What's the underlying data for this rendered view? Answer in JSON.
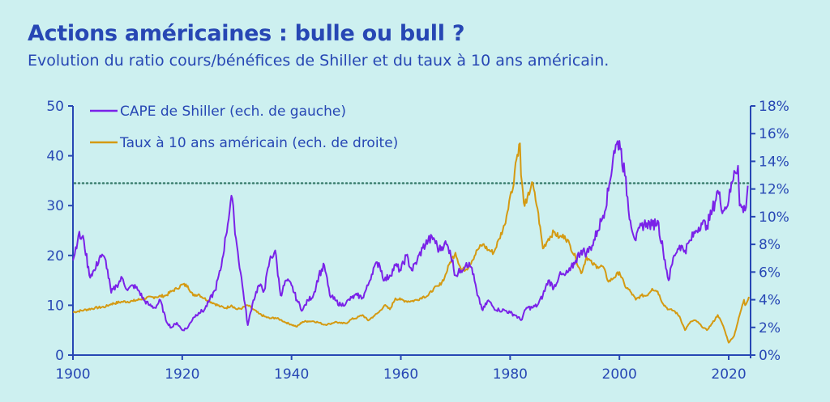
{
  "header": {
    "title": "Actions américaines : bulle ou bull ?",
    "subtitle": "Evolution du ratio cours/bénéfices de Shiller et du taux à 10 ans américain."
  },
  "colors": {
    "background": "#cdf0f0",
    "text": "#2747b4",
    "cape": "#7a22e8",
    "rate": "#d49a12",
    "reference": "#3a7d6e"
  },
  "chart_data": {
    "type": "line",
    "title": "Actions américaines : bulle ou bull ?",
    "subtitle": "Evolution du ratio cours/bénéfices de Shiller et du taux à 10 ans américain.",
    "xlim": [
      1900,
      2024
    ],
    "x_ticks": [
      1900,
      1920,
      1940,
      1960,
      1980,
      2000,
      2020
    ],
    "x_tick_labels": [
      "1900",
      "1920",
      "1940",
      "1960",
      "1980",
      "2000",
      "2020"
    ],
    "y_left": {
      "lim": [
        0,
        50
      ],
      "ticks": [
        0,
        10,
        20,
        30,
        40,
        50
      ],
      "tick_labels": [
        "0",
        "10",
        "20",
        "30",
        "40",
        "50"
      ]
    },
    "y_right": {
      "lim": [
        0,
        18
      ],
      "ticks": [
        0,
        2,
        4,
        6,
        8,
        10,
        12,
        14,
        16,
        18
      ],
      "tick_labels": [
        "0%",
        "2%",
        "4%",
        "6%",
        "8%",
        "10%",
        "12%",
        "14%",
        "16%",
        "18%"
      ]
    },
    "reference_line": {
      "value": 34.5,
      "axis": "left",
      "style": "dotted"
    },
    "legend_placement": "top-left",
    "grid": false,
    "series": [
      {
        "name": "CAPE de Shiller (ech. de gauche)",
        "axis": "left",
        "points": [
          [
            1900,
            19
          ],
          [
            1901,
            24
          ],
          [
            1902,
            23
          ],
          [
            1903,
            16
          ],
          [
            1904,
            17
          ],
          [
            1905,
            20
          ],
          [
            1906,
            19
          ],
          [
            1907,
            12.5
          ],
          [
            1908,
            14
          ],
          [
            1909,
            15.5
          ],
          [
            1910,
            13
          ],
          [
            1911,
            14
          ],
          [
            1912,
            13
          ],
          [
            1913,
            11
          ],
          [
            1914,
            10
          ],
          [
            1915,
            9.5
          ],
          [
            1916,
            11
          ],
          [
            1917,
            7
          ],
          [
            1918,
            5.5
          ],
          [
            1919,
            6.5
          ],
          [
            1920,
            5
          ],
          [
            1921,
            5.5
          ],
          [
            1922,
            7.5
          ],
          [
            1923,
            8.5
          ],
          [
            1924,
            9
          ],
          [
            1925,
            11
          ],
          [
            1926,
            13
          ],
          [
            1927,
            17
          ],
          [
            1928,
            24
          ],
          [
            1929,
            32
          ],
          [
            1929.5,
            27
          ],
          [
            1930,
            22
          ],
          [
            1931,
            14
          ],
          [
            1932,
            6
          ],
          [
            1933,
            11
          ],
          [
            1934,
            14
          ],
          [
            1935,
            13
          ],
          [
            1936,
            19
          ],
          [
            1937,
            21
          ],
          [
            1938,
            12
          ],
          [
            1939,
            15
          ],
          [
            1940,
            14
          ],
          [
            1941,
            11
          ],
          [
            1942,
            9
          ],
          [
            1943,
            11
          ],
          [
            1944,
            12
          ],
          [
            1945,
            16
          ],
          [
            1946,
            18
          ],
          [
            1947,
            12
          ],
          [
            1948,
            11
          ],
          [
            1949,
            10
          ],
          [
            1950,
            10.5
          ],
          [
            1951,
            11.5
          ],
          [
            1952,
            12
          ],
          [
            1953,
            11.5
          ],
          [
            1954,
            14
          ],
          [
            1955,
            17.5
          ],
          [
            1956,
            18.5
          ],
          [
            1957,
            15
          ],
          [
            1958,
            16
          ],
          [
            1959,
            18
          ],
          [
            1960,
            17
          ],
          [
            1961,
            20
          ],
          [
            1962,
            17
          ],
          [
            1963,
            19
          ],
          [
            1964,
            21.5
          ],
          [
            1965,
            23
          ],
          [
            1966,
            23.5
          ],
          [
            1967,
            21
          ],
          [
            1968,
            22.5
          ],
          [
            1969,
            21
          ],
          [
            1970,
            16
          ],
          [
            1971,
            17
          ],
          [
            1972,
            18.5
          ],
          [
            1973,
            17.5
          ],
          [
            1974,
            12
          ],
          [
            1975,
            9
          ],
          [
            1976,
            11
          ],
          [
            1977,
            9.5
          ],
          [
            1978,
            9
          ],
          [
            1979,
            9
          ],
          [
            1980,
            8.5
          ],
          [
            1981,
            8
          ],
          [
            1982,
            7
          ],
          [
            1983,
            9.5
          ],
          [
            1984,
            9.5
          ],
          [
            1985,
            10
          ],
          [
            1986,
            12
          ],
          [
            1987,
            15
          ],
          [
            1988,
            13.5
          ],
          [
            1989,
            16
          ],
          [
            1990,
            16
          ],
          [
            1991,
            17
          ],
          [
            1992,
            19
          ],
          [
            1993,
            21
          ],
          [
            1994,
            20.5
          ],
          [
            1995,
            22
          ],
          [
            1996,
            25
          ],
          [
            1997,
            28
          ],
          [
            1998,
            33
          ],
          [
            1999,
            41
          ],
          [
            2000,
            43
          ],
          [
            2001,
            36
          ],
          [
            2002,
            27
          ],
          [
            2003,
            23
          ],
          [
            2004,
            26
          ],
          [
            2005,
            26.5
          ],
          [
            2006,
            26
          ],
          [
            2007,
            27
          ],
          [
            2008,
            21
          ],
          [
            2009,
            15
          ],
          [
            2010,
            20
          ],
          [
            2011,
            22
          ],
          [
            2012,
            21
          ],
          [
            2013,
            23
          ],
          [
            2014,
            25
          ],
          [
            2015,
            26.5
          ],
          [
            2016,
            26
          ],
          [
            2017,
            29
          ],
          [
            2018,
            33
          ],
          [
            2019,
            29
          ],
          [
            2020,
            31
          ],
          [
            2021,
            37
          ],
          [
            2021.7,
            38
          ],
          [
            2022,
            30
          ],
          [
            2023,
            29
          ],
          [
            2023.5,
            34
          ]
        ]
      },
      {
        "name": "Taux à 10 ans américain (ech. de droite)",
        "axis": "right",
        "points": [
          [
            1900,
            3.1
          ],
          [
            1902,
            3.25
          ],
          [
            1904,
            3.4
          ],
          [
            1906,
            3.5
          ],
          [
            1907,
            3.7
          ],
          [
            1909,
            3.85
          ],
          [
            1911,
            3.9
          ],
          [
            1913,
            4.1
          ],
          [
            1915,
            4.2
          ],
          [
            1917,
            4.3
          ],
          [
            1918,
            4.6
          ],
          [
            1919,
            4.8
          ],
          [
            1920,
            5.1
          ],
          [
            1921,
            5.0
          ],
          [
            1922,
            4.3
          ],
          [
            1923,
            4.4
          ],
          [
            1924,
            4.1
          ],
          [
            1925,
            3.9
          ],
          [
            1926,
            3.7
          ],
          [
            1927,
            3.5
          ],
          [
            1928,
            3.4
          ],
          [
            1929,
            3.6
          ],
          [
            1930,
            3.3
          ],
          [
            1931,
            3.4
          ],
          [
            1932,
            3.6
          ],
          [
            1933,
            3.3
          ],
          [
            1934,
            3.0
          ],
          [
            1935,
            2.8
          ],
          [
            1936,
            2.65
          ],
          [
            1937,
            2.7
          ],
          [
            1938,
            2.55
          ],
          [
            1939,
            2.35
          ],
          [
            1940,
            2.2
          ],
          [
            1941,
            2.05
          ],
          [
            1942,
            2.4
          ],
          [
            1943,
            2.45
          ],
          [
            1944,
            2.45
          ],
          [
            1945,
            2.35
          ],
          [
            1946,
            2.2
          ],
          [
            1947,
            2.25
          ],
          [
            1948,
            2.4
          ],
          [
            1949,
            2.3
          ],
          [
            1950,
            2.3
          ],
          [
            1951,
            2.6
          ],
          [
            1952,
            2.7
          ],
          [
            1953,
            2.9
          ],
          [
            1954,
            2.5
          ],
          [
            1955,
            2.8
          ],
          [
            1956,
            3.1
          ],
          [
            1957,
            3.6
          ],
          [
            1958,
            3.3
          ],
          [
            1959,
            4.1
          ],
          [
            1960,
            4.0
          ],
          [
            1961,
            3.9
          ],
          [
            1962,
            3.9
          ],
          [
            1963,
            4.0
          ],
          [
            1964,
            4.2
          ],
          [
            1965,
            4.3
          ],
          [
            1966,
            4.8
          ],
          [
            1967,
            5.0
          ],
          [
            1968,
            5.6
          ],
          [
            1969,
            6.7
          ],
          [
            1970,
            7.4
          ],
          [
            1971,
            6.2
          ],
          [
            1972,
            6.2
          ],
          [
            1973,
            6.8
          ],
          [
            1974,
            7.6
          ],
          [
            1975,
            8.0
          ],
          [
            1976,
            7.6
          ],
          [
            1977,
            7.4
          ],
          [
            1978,
            8.4
          ],
          [
            1979,
            9.4
          ],
          [
            1980,
            11.5
          ],
          [
            1980.5,
            12.0
          ],
          [
            1981,
            13.9
          ],
          [
            1981.8,
            15.3
          ],
          [
            1982,
            13.0
          ],
          [
            1982.5,
            11.0
          ],
          [
            1983,
            11.0
          ],
          [
            1984,
            12.5
          ],
          [
            1985,
            10.6
          ],
          [
            1986,
            7.7
          ],
          [
            1987,
            8.4
          ],
          [
            1988,
            8.9
          ],
          [
            1989,
            8.5
          ],
          [
            1990,
            8.6
          ],
          [
            1991,
            7.9
          ],
          [
            1992,
            7.0
          ],
          [
            1993,
            5.9
          ],
          [
            1994,
            7.1
          ],
          [
            1995,
            6.6
          ],
          [
            1996,
            6.4
          ],
          [
            1997,
            6.4
          ],
          [
            1998,
            5.3
          ],
          [
            1999,
            5.6
          ],
          [
            2000,
            6.0
          ],
          [
            2001,
            5.0
          ],
          [
            2002,
            4.6
          ],
          [
            2003,
            4.0
          ],
          [
            2004,
            4.3
          ],
          [
            2005,
            4.3
          ],
          [
            2006,
            4.8
          ],
          [
            2007,
            4.6
          ],
          [
            2008,
            3.7
          ],
          [
            2009,
            3.3
          ],
          [
            2010,
            3.2
          ],
          [
            2011,
            2.8
          ],
          [
            2012,
            1.8
          ],
          [
            2013,
            2.4
          ],
          [
            2014,
            2.5
          ],
          [
            2015,
            2.1
          ],
          [
            2016,
            1.8
          ],
          [
            2017,
            2.3
          ],
          [
            2018,
            2.9
          ],
          [
            2019,
            2.1
          ],
          [
            2020,
            0.9
          ],
          [
            2021,
            1.4
          ],
          [
            2022,
            2.9
          ],
          [
            2022.8,
            4.0
          ],
          [
            2023,
            3.6
          ],
          [
            2023.7,
            4.2
          ]
        ]
      }
    ]
  }
}
